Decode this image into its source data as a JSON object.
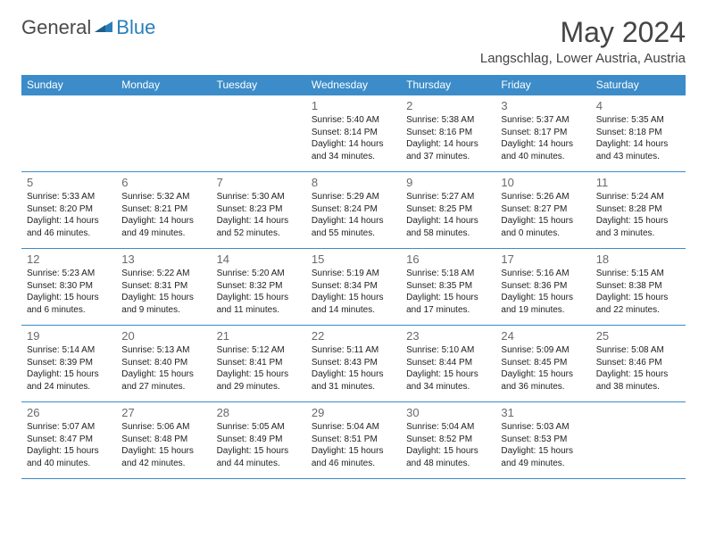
{
  "logo": {
    "word1": "General",
    "word2": "Blue"
  },
  "title": "May 2024",
  "location": "Langschlag, Lower Austria, Austria",
  "day_headers": [
    "Sunday",
    "Monday",
    "Tuesday",
    "Wednesday",
    "Thursday",
    "Friday",
    "Saturday"
  ],
  "colors": {
    "header_bg": "#3b8cc9",
    "header_text": "#ffffff",
    "rule": "#3b8cc9",
    "logo_blue": "#2a7fba"
  },
  "weeks": [
    [
      null,
      null,
      null,
      {
        "n": "1",
        "sr": "5:40 AM",
        "ss": "8:14 PM",
        "dl": "14 hours and 34 minutes."
      },
      {
        "n": "2",
        "sr": "5:38 AM",
        "ss": "8:16 PM",
        "dl": "14 hours and 37 minutes."
      },
      {
        "n": "3",
        "sr": "5:37 AM",
        "ss": "8:17 PM",
        "dl": "14 hours and 40 minutes."
      },
      {
        "n": "4",
        "sr": "5:35 AM",
        "ss": "8:18 PM",
        "dl": "14 hours and 43 minutes."
      }
    ],
    [
      {
        "n": "5",
        "sr": "5:33 AM",
        "ss": "8:20 PM",
        "dl": "14 hours and 46 minutes."
      },
      {
        "n": "6",
        "sr": "5:32 AM",
        "ss": "8:21 PM",
        "dl": "14 hours and 49 minutes."
      },
      {
        "n": "7",
        "sr": "5:30 AM",
        "ss": "8:23 PM",
        "dl": "14 hours and 52 minutes."
      },
      {
        "n": "8",
        "sr": "5:29 AM",
        "ss": "8:24 PM",
        "dl": "14 hours and 55 minutes."
      },
      {
        "n": "9",
        "sr": "5:27 AM",
        "ss": "8:25 PM",
        "dl": "14 hours and 58 minutes."
      },
      {
        "n": "10",
        "sr": "5:26 AM",
        "ss": "8:27 PM",
        "dl": "15 hours and 0 minutes."
      },
      {
        "n": "11",
        "sr": "5:24 AM",
        "ss": "8:28 PM",
        "dl": "15 hours and 3 minutes."
      }
    ],
    [
      {
        "n": "12",
        "sr": "5:23 AM",
        "ss": "8:30 PM",
        "dl": "15 hours and 6 minutes."
      },
      {
        "n": "13",
        "sr": "5:22 AM",
        "ss": "8:31 PM",
        "dl": "15 hours and 9 minutes."
      },
      {
        "n": "14",
        "sr": "5:20 AM",
        "ss": "8:32 PM",
        "dl": "15 hours and 11 minutes."
      },
      {
        "n": "15",
        "sr": "5:19 AM",
        "ss": "8:34 PM",
        "dl": "15 hours and 14 minutes."
      },
      {
        "n": "16",
        "sr": "5:18 AM",
        "ss": "8:35 PM",
        "dl": "15 hours and 17 minutes."
      },
      {
        "n": "17",
        "sr": "5:16 AM",
        "ss": "8:36 PM",
        "dl": "15 hours and 19 minutes."
      },
      {
        "n": "18",
        "sr": "5:15 AM",
        "ss": "8:38 PM",
        "dl": "15 hours and 22 minutes."
      }
    ],
    [
      {
        "n": "19",
        "sr": "5:14 AM",
        "ss": "8:39 PM",
        "dl": "15 hours and 24 minutes."
      },
      {
        "n": "20",
        "sr": "5:13 AM",
        "ss": "8:40 PM",
        "dl": "15 hours and 27 minutes."
      },
      {
        "n": "21",
        "sr": "5:12 AM",
        "ss": "8:41 PM",
        "dl": "15 hours and 29 minutes."
      },
      {
        "n": "22",
        "sr": "5:11 AM",
        "ss": "8:43 PM",
        "dl": "15 hours and 31 minutes."
      },
      {
        "n": "23",
        "sr": "5:10 AM",
        "ss": "8:44 PM",
        "dl": "15 hours and 34 minutes."
      },
      {
        "n": "24",
        "sr": "5:09 AM",
        "ss": "8:45 PM",
        "dl": "15 hours and 36 minutes."
      },
      {
        "n": "25",
        "sr": "5:08 AM",
        "ss": "8:46 PM",
        "dl": "15 hours and 38 minutes."
      }
    ],
    [
      {
        "n": "26",
        "sr": "5:07 AM",
        "ss": "8:47 PM",
        "dl": "15 hours and 40 minutes."
      },
      {
        "n": "27",
        "sr": "5:06 AM",
        "ss": "8:48 PM",
        "dl": "15 hours and 42 minutes."
      },
      {
        "n": "28",
        "sr": "5:05 AM",
        "ss": "8:49 PM",
        "dl": "15 hours and 44 minutes."
      },
      {
        "n": "29",
        "sr": "5:04 AM",
        "ss": "8:51 PM",
        "dl": "15 hours and 46 minutes."
      },
      {
        "n": "30",
        "sr": "5:04 AM",
        "ss": "8:52 PM",
        "dl": "15 hours and 48 minutes."
      },
      {
        "n": "31",
        "sr": "5:03 AM",
        "ss": "8:53 PM",
        "dl": "15 hours and 49 minutes."
      },
      null
    ]
  ],
  "labels": {
    "sunrise": "Sunrise:",
    "sunset": "Sunset:",
    "daylight": "Daylight:"
  }
}
